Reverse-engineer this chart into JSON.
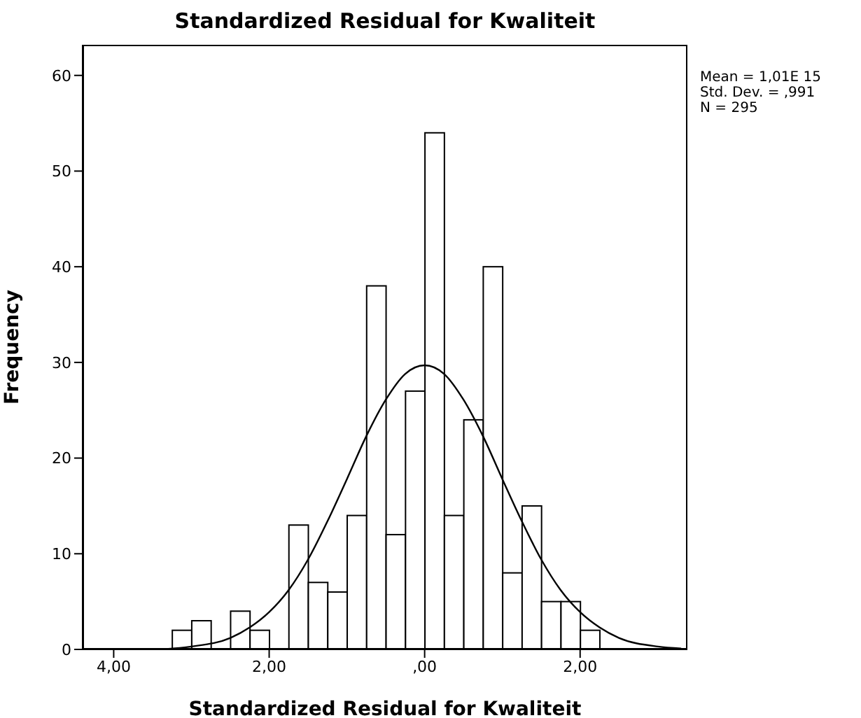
{
  "chart_data": {
    "type": "histogram",
    "title": "Standardized Residual for Kwaliteit",
    "xlabel": "Standardized Residual for Kwaliteit",
    "ylabel": "Frequency",
    "bins": [
      -3.25,
      -3,
      -2.75,
      -2.5,
      -2.25,
      -2,
      -1.75,
      -1.5,
      -1.25,
      -1,
      -0.75,
      -0.5,
      -0.25,
      0,
      0.25,
      0.5,
      0.75,
      1,
      1.25,
      1.5,
      1.75,
      2,
      2.25
    ],
    "values": [
      2,
      3,
      0,
      4,
      2,
      0,
      13,
      7,
      6,
      14,
      38,
      12,
      27,
      54,
      14,
      24,
      40,
      8,
      15,
      5,
      5,
      2
    ],
    "color": "#ffffff",
    "series": [
      {
        "type": "line",
        "color": "#000000",
        "x": [
          -3.6,
          -3.5,
          -3,
          -2.5,
          -2.25,
          -2,
          -1.75,
          -1.5,
          -1.25,
          -1,
          -0.75,
          -0.5,
          -0.25,
          0,
          0.25,
          0.5,
          0.75,
          1,
          1.25,
          1.5,
          1.75,
          2,
          2.25,
          2.5,
          3,
          3.3
        ],
        "values": [
          0,
          0,
          0.3,
          1.2,
          2.3,
          3.9,
          6.2,
          9.4,
          13.4,
          17.8,
          22.3,
          26.1,
          28.8,
          29.7,
          28.8,
          26.1,
          22.3,
          17.8,
          13.4,
          9.4,
          6.2,
          3.9,
          2.3,
          1.2,
          0.3,
          0.1
        ]
      }
    ],
    "xlim": [
      -4.4,
      3.38
    ],
    "xticks": [
      {
        "value": -4,
        "label": "4,00"
      },
      {
        "value": -2,
        "label": "2,00"
      },
      {
        "value": 0,
        "label": ",00"
      },
      {
        "value": 2,
        "label": "2,00"
      }
    ],
    "ylim": [
      0,
      63.2
    ],
    "yticks": [
      0,
      10,
      20,
      30,
      40,
      50,
      60
    ],
    "annotations": [
      "Mean = 1,01E 15",
      "Std. Dev. = ,991",
      "N = 295"
    ]
  }
}
